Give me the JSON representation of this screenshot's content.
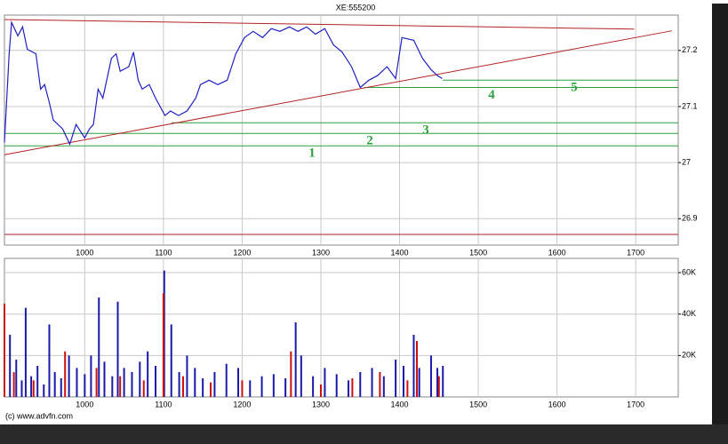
{
  "chart_data": [
    {
      "type": "line",
      "title": "XE:555200",
      "color": "#2020c0",
      "x": [
        898,
        904,
        907,
        915,
        921,
        927,
        938,
        944,
        949,
        955,
        960,
        972,
        981,
        989,
        1000,
        1006,
        1011,
        1017,
        1023,
        1034,
        1040,
        1045,
        1056,
        1062,
        1068,
        1073,
        1082,
        1090,
        1102,
        1109,
        1119,
        1130,
        1141,
        1147,
        1158,
        1169,
        1181,
        1192,
        1203,
        1214,
        1226,
        1237,
        1248,
        1260,
        1271,
        1282,
        1293,
        1305,
        1316,
        1327,
        1339,
        1350,
        1361,
        1372,
        1384,
        1395,
        1403,
        1418,
        1429,
        1440,
        1448,
        1454
      ],
      "values": [
        27.036,
        27.194,
        27.25,
        27.226,
        27.242,
        27.202,
        27.194,
        27.131,
        27.139,
        27.107,
        27.076,
        27.06,
        27.033,
        27.068,
        27.044,
        27.06,
        27.068,
        27.131,
        27.115,
        27.186,
        27.194,
        27.163,
        27.171,
        27.197,
        27.147,
        27.131,
        27.139,
        27.115,
        27.084,
        27.092,
        27.084,
        27.092,
        27.115,
        27.139,
        27.147,
        27.139,
        27.147,
        27.194,
        27.223,
        27.234,
        27.223,
        27.239,
        27.234,
        27.242,
        27.234,
        27.242,
        27.229,
        27.239,
        27.21,
        27.197,
        27.171,
        27.134,
        27.147,
        27.155,
        27.171,
        27.15,
        27.223,
        27.218,
        27.186,
        27.166,
        27.155,
        27.15
      ],
      "xlim": [
        898,
        1754
      ],
      "ylim": [
        26.853,
        27.263
      ],
      "xticks": [
        1000,
        1100,
        1200,
        1300,
        1400,
        1500,
        1600,
        1700
      ],
      "yticks": [
        27.2,
        27.1,
        27,
        26.9
      ],
      "grid": true,
      "trendlines": [
        {
          "x": [
            898,
            1698
          ],
          "y": [
            27.255,
            27.238
          ],
          "color": "#b22222"
        },
        {
          "x": [
            898,
            1746
          ],
          "y": [
            27.014,
            27.235
          ],
          "color": "#b22222"
        },
        {
          "x": [
            898,
            1754
          ],
          "y": [
            26.872,
            26.872
          ],
          "color": "#b22222"
        }
      ],
      "level_color": "#2e9e3e",
      "levels": [
        {
          "label": "1",
          "value": 27.03,
          "from": 898
        },
        {
          "label": "2",
          "value": 27.052,
          "from": 898
        },
        {
          "label": "3",
          "value": 27.071,
          "from": 1110
        },
        {
          "label": "4",
          "value": 27.134,
          "from": 1355
        },
        {
          "label": "5",
          "value": 27.147,
          "from": 1455
        }
      ]
    },
    {
      "type": "bar",
      "series": [
        {
          "color": "#1a1aa8",
          "x": [
            898,
            905,
            913,
            920,
            925,
            932,
            940,
            948,
            955,
            962,
            970,
            980,
            990,
            1000,
            1008,
            1018,
            1025,
            1035,
            1042,
            1050,
            1060,
            1070,
            1080,
            1090,
            1101,
            1110,
            1120,
            1130,
            1140,
            1150,
            1165,
            1180,
            1195,
            1210,
            1225,
            1240,
            1255,
            1268,
            1275,
            1290,
            1305,
            1320,
            1335,
            1350,
            1365,
            1380,
            1395,
            1405,
            1418,
            1425,
            1440,
            1448,
            1455
          ],
          "values": [
            12000,
            30000,
            18000,
            8000,
            43000,
            10000,
            15000,
            6000,
            35000,
            12000,
            9000,
            20000,
            14000,
            11000,
            20000,
            48000,
            17000,
            10000,
            46000,
            14000,
            12000,
            17000,
            22000,
            15000,
            61000,
            35000,
            12000,
            20000,
            14000,
            9000,
            12000,
            16000,
            14000,
            8000,
            10000,
            11000,
            9000,
            36000,
            20000,
            10000,
            14000,
            11000,
            8000,
            12000,
            14000,
            10000,
            18000,
            15000,
            30000,
            14000,
            20000,
            14000,
            15000
          ]
        },
        {
          "color": "#cc1111",
          "x": [
            898,
            910,
            935,
            975,
            1015,
            1045,
            1075,
            1100,
            1125,
            1160,
            1200,
            1262,
            1300,
            1340,
            1375,
            1410,
            1422,
            1450
          ],
          "values": [
            45000,
            12000,
            8000,
            22000,
            14000,
            10000,
            8000,
            50000,
            10000,
            7000,
            8000,
            22000,
            6000,
            9000,
            12000,
            8000,
            27000,
            10000
          ]
        }
      ],
      "xlim": [
        898,
        1754
      ],
      "ylim": [
        0,
        66880
      ],
      "xticks": [
        1000,
        1100,
        1200,
        1300,
        1400,
        1500,
        1600,
        1700
      ],
      "yticks": [
        {
          "value": 60000,
          "label": "60K"
        },
        {
          "value": 40000,
          "label": "40K"
        },
        {
          "value": 20000,
          "label": "20K"
        }
      ],
      "grid": true
    }
  ],
  "footer": "(c) www.advfn.com"
}
